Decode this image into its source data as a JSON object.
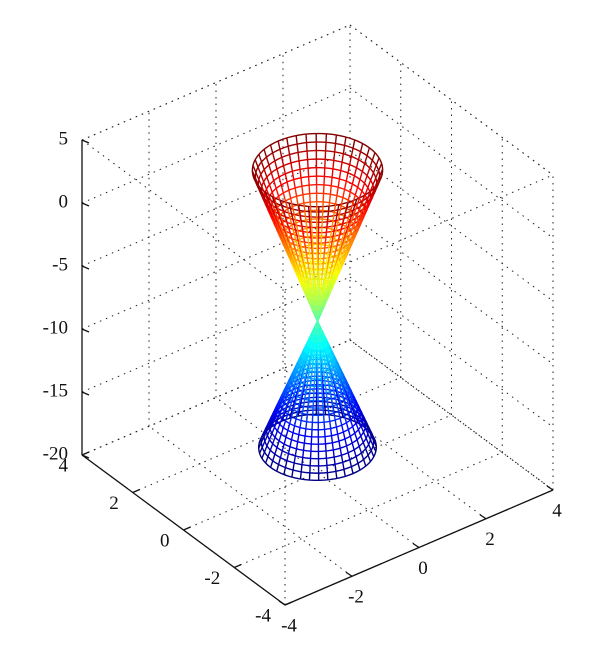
{
  "chart_data": {
    "type": "mesh3d",
    "xlim": [
      -4,
      4
    ],
    "ylim": [
      -4,
      4
    ],
    "zlim": [
      -20,
      5
    ],
    "xticks": [
      -4,
      -2,
      0,
      2,
      4
    ],
    "yticks": [
      -4,
      -2,
      0,
      2,
      4
    ],
    "zticks": [
      -20,
      -15,
      -10,
      -5,
      0,
      5
    ],
    "grid": true,
    "colormap": "jet",
    "surface": {
      "apex_z": -8,
      "top_z": 4,
      "bottom_z": -18,
      "top_radius": 1.55,
      "bottom_radius": 1.4
    }
  }
}
